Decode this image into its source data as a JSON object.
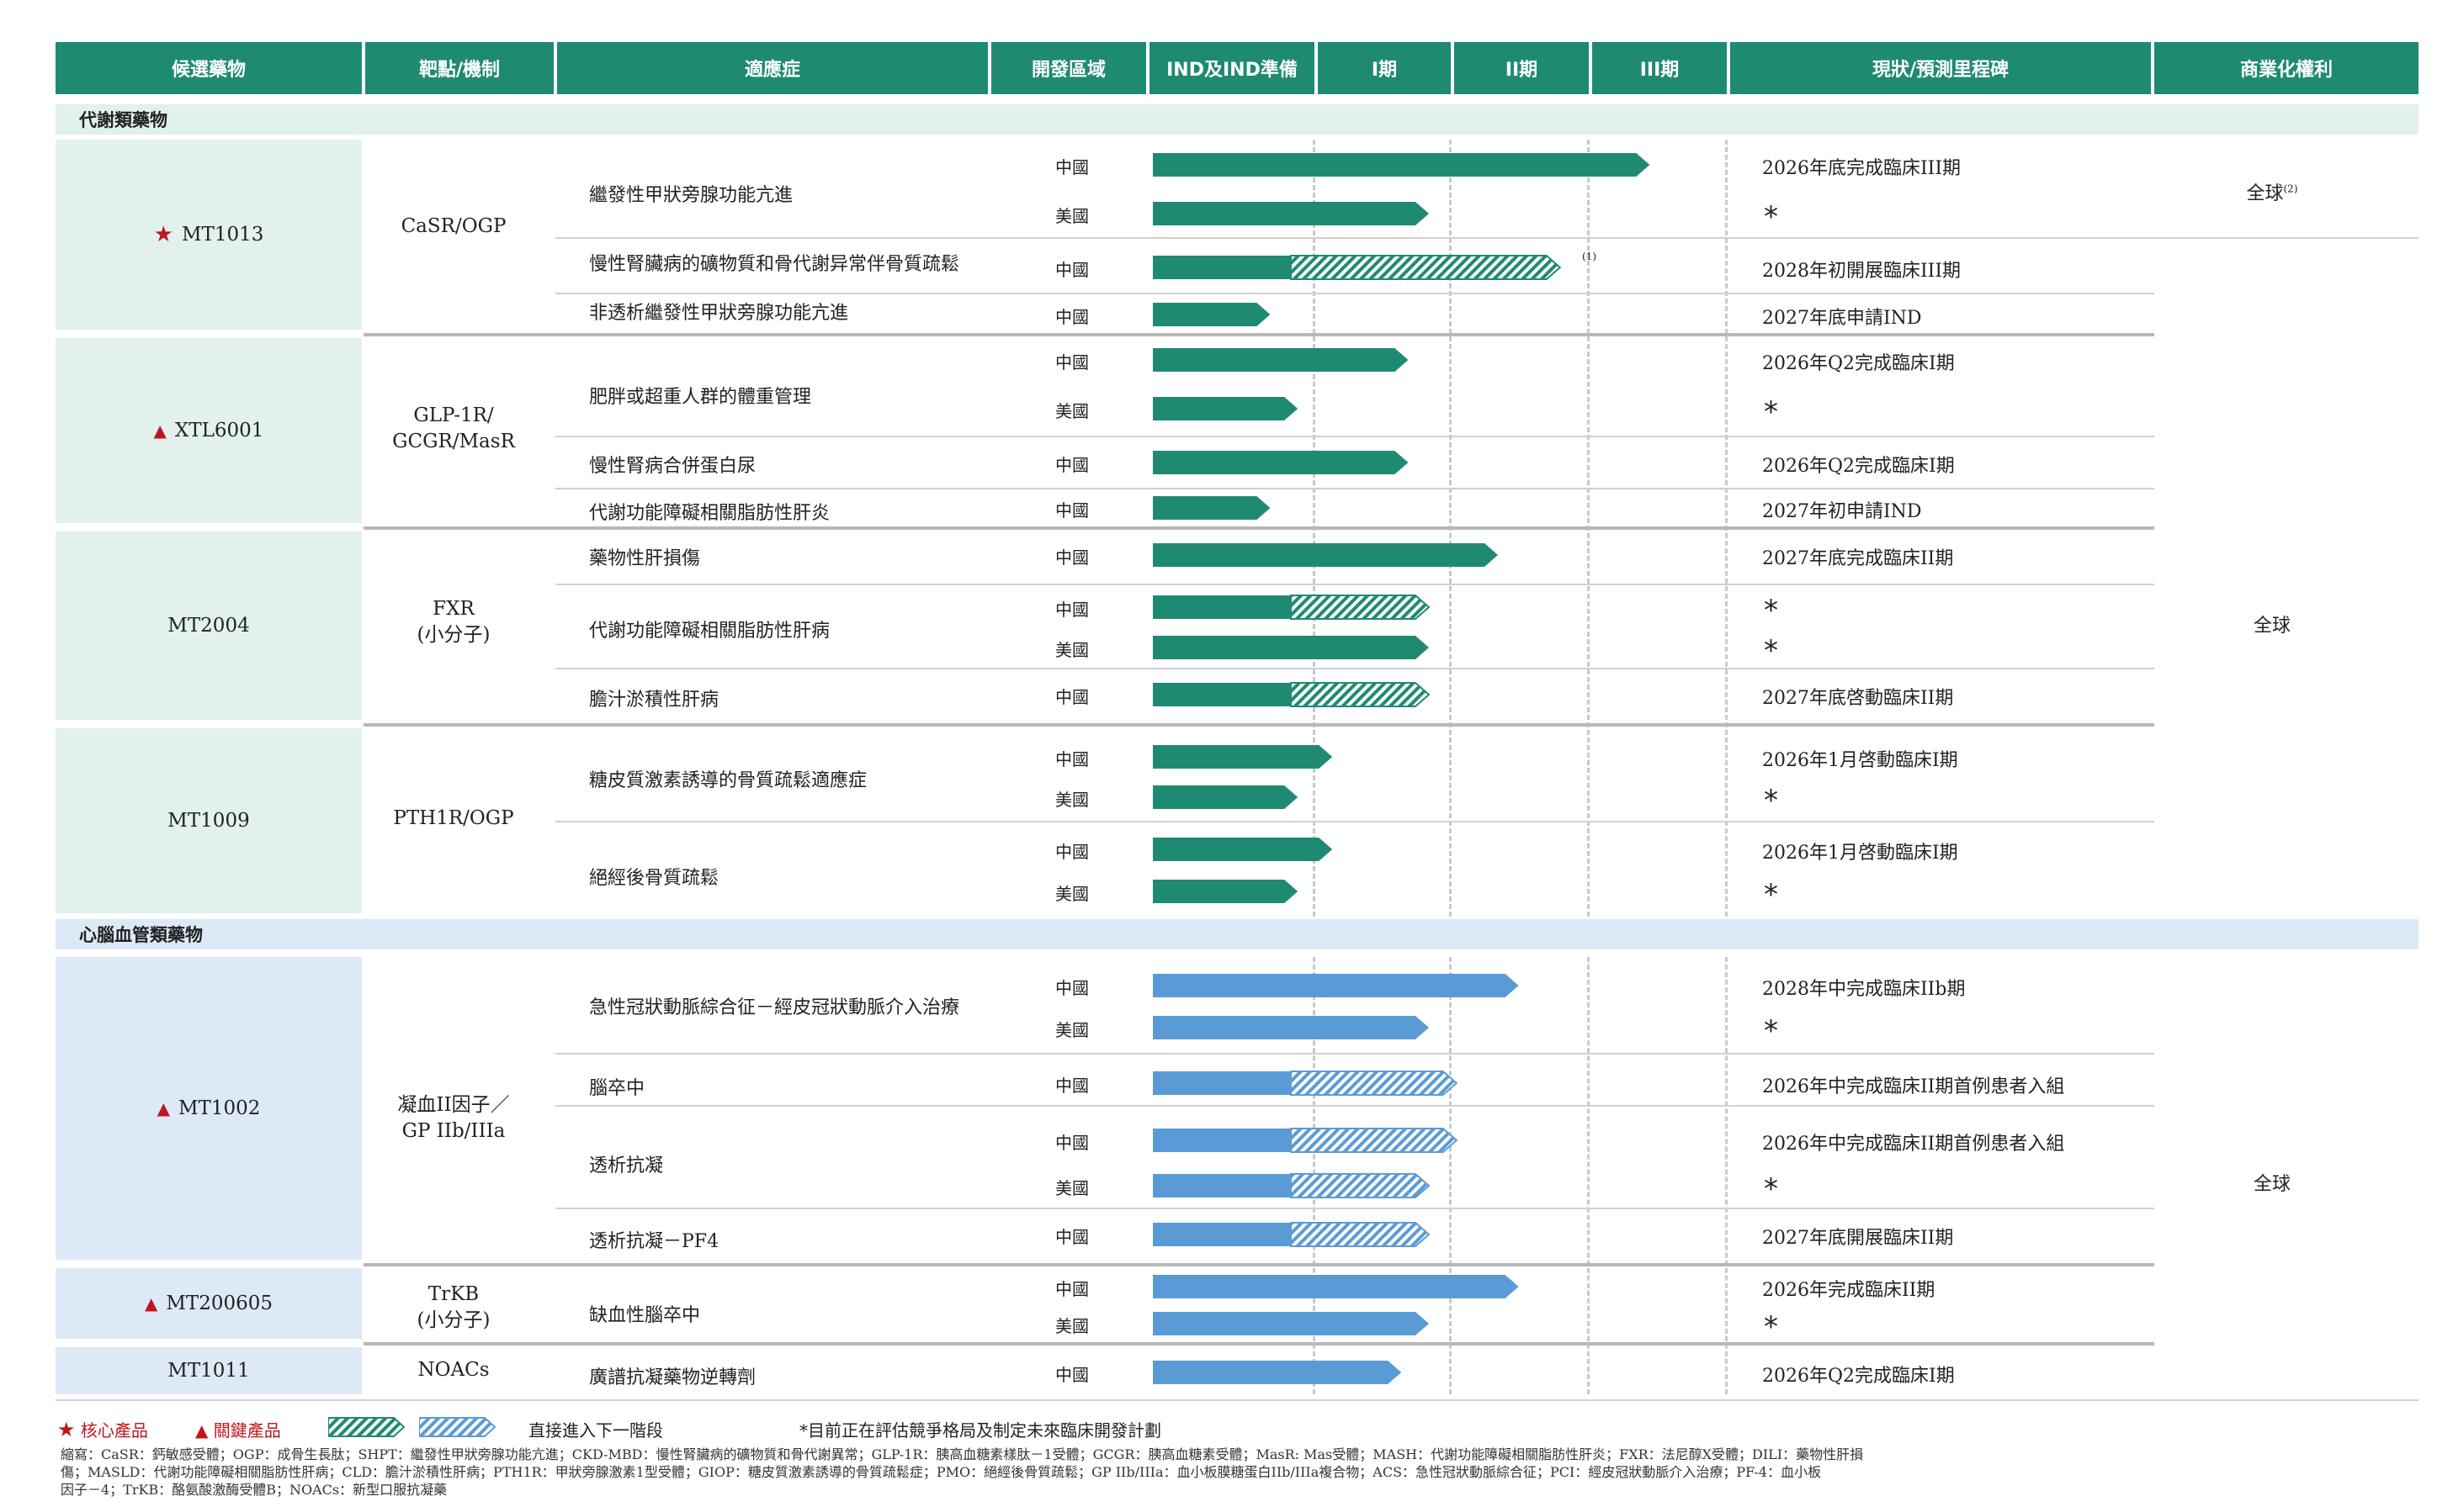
{
  "colors": {
    "header_bg": "#1f8a72",
    "metabolic_bg": "#e2f1ed",
    "cardio_bg": "#dde9f7",
    "green_bar": "#1f8a72",
    "blue_bar": "#5b9bd5",
    "hatch_bg": "#ffffff",
    "red_marker": "#c0161c"
  },
  "headers": {
    "candidate": "候選藥物",
    "target": "靶點/機制",
    "indication": "適應症",
    "region": "開發區域",
    "ind": "IND及IND準備",
    "phase1": "I期",
    "phase2": "II期",
    "phase3": "III期",
    "milestone": "現狀/預測里程碑",
    "rights": "商業化權利"
  },
  "sections": {
    "metabolic": "代謝類藥物",
    "cardio": "心腦血管類藥物"
  },
  "drugs": {
    "mt1013": {
      "name": "MT1013",
      "marker": "★",
      "target": "CaSR/OGP"
    },
    "xtl6001": {
      "name": "XTL6001",
      "marker": "▲",
      "target_line1": "GLP-1R/",
      "target_line2": "GCGR/MasR"
    },
    "mt2004": {
      "name": "MT2004",
      "target_line1": "FXR",
      "target_line2": "(小分子)"
    },
    "mt1009": {
      "name": "MT1009",
      "target": "PTH1R/OGP"
    },
    "mt1002": {
      "name": "MT1002",
      "marker": "▲",
      "target_line1": "凝血II因子／",
      "target_line2": "GP IIb/IIIa"
    },
    "mt200605": {
      "name": "MT200605",
      "marker": "▲",
      "target_line1": "TrKB",
      "target_line2": "(小分子)"
    },
    "mt1011": {
      "name": "MT1011",
      "target": "NOACs"
    }
  },
  "indications": {
    "i1": "繼發性甲狀旁腺功能亢進",
    "i2": "慢性腎臟病的礦物質和骨代謝异常伴骨質疏鬆",
    "i3": "非透析繼發性甲狀旁腺功能亢進",
    "i4": "肥胖或超重人群的體重管理",
    "i5": "慢性腎病合併蛋白尿",
    "i6": "代謝功能障礙相關脂肪性肝炎",
    "i7": "藥物性肝損傷",
    "i8": "代謝功能障礙相關脂肪性肝病",
    "i9": "膽汁淤積性肝病",
    "i10": "糖皮質激素誘導的骨質疏鬆適應症",
    "i11": "絕經後骨質疏鬆",
    "i12": "急性冠狀動脈綜合征－經皮冠狀動脈介入治療",
    "i13": "腦卒中",
    "i14": "透析抗凝",
    "i15": "透析抗凝－PF4",
    "i16": "缺血性腦卒中",
    "i17": "廣譜抗凝藥物逆轉劑"
  },
  "regions": {
    "china": "中國",
    "usa": "美國"
  },
  "rows": [
    {
      "region": "中國",
      "milestone": "2026年底完成臨床III期",
      "color": "green",
      "progress": 3.6,
      "hatched_from": null
    },
    {
      "region": "美國",
      "milestone": "*",
      "color": "green",
      "progress": 2.0,
      "hatched_from": null
    },
    {
      "region": "中國",
      "milestone": "2028年初開展臨床III期",
      "color": "green",
      "progress": 2.95,
      "hatched_from": 1.0,
      "footnote": "(1)"
    },
    {
      "region": "中國",
      "milestone": "2027年底申請IND",
      "color": "green",
      "progress": 0.85,
      "hatched_from": null
    },
    {
      "region": "中國",
      "milestone": "2026年Q2完成臨床I期",
      "color": "green",
      "progress": 1.85,
      "hatched_from": null
    },
    {
      "region": "美國",
      "milestone": "*",
      "color": "green",
      "progress": 1.05,
      "hatched_from": null
    },
    {
      "region": "中國",
      "milestone": "2026年Q2完成臨床I期",
      "color": "green",
      "progress": 1.85,
      "hatched_from": null
    },
    {
      "region": "中國",
      "milestone": "2027年初申請IND",
      "color": "green",
      "progress": 0.85,
      "hatched_from": null
    },
    {
      "region": "中國",
      "milestone": "2027年底完成臨床II期",
      "color": "green",
      "progress": 2.5,
      "hatched_from": null
    },
    {
      "region": "中國",
      "milestone": "*",
      "color": "green",
      "progress": 2.0,
      "hatched_from": 1.0
    },
    {
      "region": "美國",
      "milestone": "*",
      "color": "green",
      "progress": 2.0,
      "hatched_from": null
    },
    {
      "region": "中國",
      "milestone": "2027年底啓動臨床II期",
      "color": "green",
      "progress": 2.0,
      "hatched_from": 1.0
    },
    {
      "region": "中國",
      "milestone": "2026年1月啓動臨床I期",
      "color": "green",
      "progress": 1.3,
      "hatched_from": null
    },
    {
      "region": "美國",
      "milestone": "*",
      "color": "green",
      "progress": 1.05,
      "hatched_from": null
    },
    {
      "region": "中國",
      "milestone": "2026年1月啓動臨床I期",
      "color": "green",
      "progress": 1.3,
      "hatched_from": null
    },
    {
      "region": "美國",
      "milestone": "*",
      "color": "green",
      "progress": 1.05,
      "hatched_from": null
    },
    {
      "region": "中國",
      "milestone": "2028年中完成臨床IIb期",
      "color": "blue",
      "progress": 2.65,
      "hatched_from": null
    },
    {
      "region": "美國",
      "milestone": "*",
      "color": "blue",
      "progress": 2.0,
      "hatched_from": null
    },
    {
      "region": "中國",
      "milestone": "2026年中完成臨床II期首例患者入組",
      "color": "blue",
      "progress": 2.2,
      "hatched_from": 1.0
    },
    {
      "region": "中國",
      "milestone": "2026年中完成臨床II期首例患者入組",
      "color": "blue",
      "progress": 2.2,
      "hatched_from": 1.0
    },
    {
      "region": "美國",
      "milestone": "*",
      "color": "blue",
      "progress": 2.0,
      "hatched_from": 1.0
    },
    {
      "region": "中國",
      "milestone": "2027年底開展臨床II期",
      "color": "blue",
      "progress": 2.0,
      "hatched_from": 1.0
    },
    {
      "region": "中國",
      "milestone": "2026年完成臨床II期",
      "color": "blue",
      "progress": 2.65,
      "hatched_from": null
    },
    {
      "region": "美國",
      "milestone": "*",
      "color": "blue",
      "progress": 2.0,
      "hatched_from": null
    },
    {
      "region": "中國",
      "milestone": "2026年Q2完成臨床I期",
      "color": "blue",
      "progress": 1.8,
      "hatched_from": null
    }
  ],
  "rights": {
    "global": "全球",
    "footnote": "(2)"
  },
  "legend": {
    "core": "核心產品",
    "key": "關鍵產品",
    "direct": "直接進入下一階段",
    "note": "*目前正在評估競爭格局及制定未來臨床開發計劃"
  },
  "abbreviations": {
    "line1": "縮寫：CaSR：鈣敏感受體；OGP：成骨生長肽；SHPT：繼發性甲狀旁腺功能亢進；CKD-MBD：慢性腎臟病的礦物質和骨代謝異常；GLP-1R：胰高血糖素樣肽－1受體；GCGR：胰高血糖素受體；MasR: Mas受體；MASH：代謝功能障礙相關脂肪性肝炎；FXR：法尼醇X受體；DILI：藥物性肝損",
    "line2": "傷；MASLD：代謝功能障礙相關脂肪性肝病；CLD：膽汁淤積性肝病；PTH1R：甲狀旁腺激素1型受體；GIOP：糖皮質激素誘導的骨質疏鬆症；PMO：絕經後骨質疏鬆；GP IIb/IIIa：血小板膜糖蛋白IIb/IIIa複合物；ACS：急性冠狀動脈綜合征；PCI：經皮冠狀動脈介入治療；PF-4：血小板",
    "line3": "因子－4；TrKB：酪氨酸激酶受體B；NOACs：新型口服抗凝藥"
  }
}
